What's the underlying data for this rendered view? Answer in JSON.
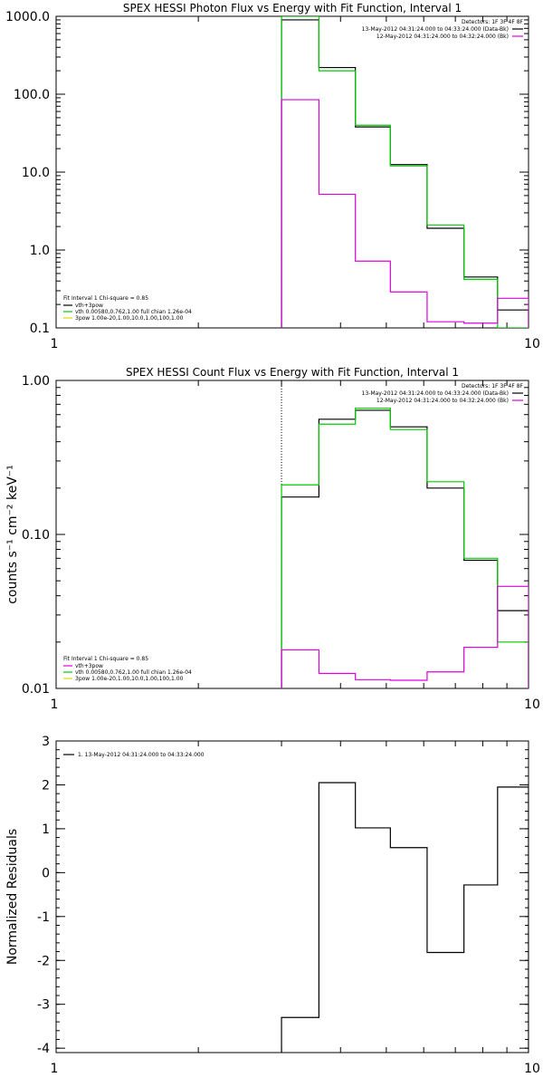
{
  "colors": {
    "data": "#000000",
    "background": "#000000",
    "model": "#00cc00",
    "component_green": "#00cc00",
    "component_magenta": "#dd00dd",
    "axis": "#000000",
    "vline": "#000000"
  },
  "chart_data": [
    {
      "id": "photon",
      "type": "line",
      "step": true,
      "title": "SPEX HESSI Photon Flux vs Energy with Fit Function, Interval 1",
      "xlabel": "",
      "ylabel": "",
      "xscale": "log",
      "yscale": "log",
      "xlim": [
        1,
        10
      ],
      "ylim": [
        0.1,
        1000
      ],
      "x_ticks": [
        {
          "v": 1,
          "l": "1"
        },
        {
          "v": 10,
          "l": "10"
        }
      ],
      "y_ticks": [
        {
          "v": 0.1,
          "l": "0.1"
        },
        {
          "v": 1,
          "l": "1.0"
        },
        {
          "v": 10,
          "l": "10.0"
        },
        {
          "v": 100,
          "l": "100.0"
        },
        {
          "v": 1000,
          "l": "1000.0"
        }
      ],
      "vline_x": 3.0,
      "legend_top": {
        "placement": "top-right",
        "header": "Detectors: 1F 3F 4F 8F",
        "rows": [
          {
            "text": "13-May-2012 04:31:24.000 to 04:33:24.000 (Data-Bk)",
            "color": "#000000"
          },
          {
            "text": "12-May-2012 04:31:24.000 to 04:32:24.000 (Bk)",
            "color": "#dd00dd"
          }
        ]
      },
      "legend_bottom": {
        "placement": "bottom-left",
        "header": "Fit Interval 1    Chi-square = 0.85",
        "rows": [
          {
            "text": "vth+3pow",
            "color": "#000000"
          },
          {
            "text": "vth 0.00580,0.762,1.00   full chian 1.26e-04",
            "color": "#00cc00"
          },
          {
            "text": "3pow 1.00e-20,1.00,10.0,1.00,100,1.00",
            "color": "#dddd00"
          }
        ]
      },
      "x_edges": [
        3.0,
        3.6,
        4.3,
        5.1,
        6.1,
        7.3,
        8.6,
        10.0
      ],
      "series": [
        {
          "name": "13-May-2012 04:31:24.000 to 04:33:24.000 (Data-Bk)",
          "color": "#000000",
          "values": [
            900,
            220,
            38,
            12.5,
            1.9,
            0.45,
            0.17
          ]
        },
        {
          "name": "vth+3pow",
          "color": "#00cc00",
          "values": [
            1000,
            200,
            40,
            12.0,
            2.1,
            0.42,
            0.1
          ]
        },
        {
          "name": "12-May-2012 04:31:24.000 to 04:32:24.000 (Bk)",
          "color": "#dd00dd",
          "values": [
            85,
            5.2,
            0.72,
            0.29,
            0.12,
            0.115,
            0.24
          ]
        }
      ]
    },
    {
      "id": "count",
      "type": "line",
      "step": true,
      "title": "SPEX HESSI Count Flux vs Energy with Fit Function, Interval 1",
      "xlabel": "",
      "ylabel": "counts s⁻¹ cm⁻² keV⁻¹",
      "xscale": "log",
      "yscale": "log",
      "xlim": [
        1,
        10
      ],
      "ylim": [
        0.01,
        1.0
      ],
      "x_ticks": [
        {
          "v": 1,
          "l": "1"
        },
        {
          "v": 10,
          "l": "10"
        }
      ],
      "y_ticks": [
        {
          "v": 0.01,
          "l": "0.01"
        },
        {
          "v": 0.1,
          "l": "0.10"
        },
        {
          "v": 1,
          "l": "1.00"
        }
      ],
      "vline_x": 3.0,
      "legend_top": {
        "placement": "top-right",
        "header": "Detectors: 1F 3F 4F 8F",
        "rows": [
          {
            "text": "13-May-2012 04:31:24.000 to 04:33:24.000 (Data-Bk)",
            "color": "#000000"
          },
          {
            "text": "12-May-2012 04:31:24.000 to 04:32:24.000 (Bk)",
            "color": "#dd00dd"
          }
        ]
      },
      "legend_bottom": {
        "placement": "bottom-left",
        "header": "Fit Interval 1    Chi-square = 0.85",
        "rows": [
          {
            "text": "vth+3pow",
            "color": "#dd00dd"
          },
          {
            "text": "vth 0.00580,0.762,1.00   full chian 1.26e-04",
            "color": "#00cc00"
          },
          {
            "text": "3pow 1.00e-20,1.00,10.0,1.00,100,1.00",
            "color": "#dddd00"
          }
        ]
      },
      "x_edges": [
        3.0,
        3.6,
        4.3,
        5.1,
        6.1,
        7.3,
        8.6,
        10.0
      ],
      "series": [
        {
          "name": "13-May-2012 04:31:24.000 to 04:33:24.000 (Data-Bk)",
          "color": "#000000",
          "values": [
            0.175,
            0.56,
            0.64,
            0.5,
            0.2,
            0.068,
            0.032
          ]
        },
        {
          "name": "vth+3pow",
          "color": "#00cc00",
          "values": [
            0.21,
            0.52,
            0.66,
            0.48,
            0.22,
            0.07,
            0.02
          ]
        },
        {
          "name": "12-May-2012 04:31:24.000 to 04:32:24.000 (Bk)",
          "color": "#dd00dd",
          "values": [
            0.0178,
            0.0125,
            0.0114,
            0.0113,
            0.0128,
            0.0185,
            0.046
          ]
        }
      ]
    },
    {
      "id": "residuals",
      "type": "line",
      "step": true,
      "title": "",
      "xlabel": "",
      "ylabel": "Normalized Residuals",
      "xscale": "log",
      "yscale": "linear",
      "xlim": [
        1,
        10
      ],
      "ylim": [
        -4.1,
        3.0
      ],
      "x_ticks": [
        {
          "v": 1,
          "l": "1"
        },
        {
          "v": 10,
          "l": "10"
        }
      ],
      "y_ticks": [
        {
          "v": -4,
          "l": "-4"
        },
        {
          "v": -3,
          "l": "-3"
        },
        {
          "v": -2,
          "l": "-2"
        },
        {
          "v": -1,
          "l": "-1"
        },
        {
          "v": 0,
          "l": "0"
        },
        {
          "v": 1,
          "l": "1"
        },
        {
          "v": 2,
          "l": "2"
        },
        {
          "v": 3,
          "l": "3"
        }
      ],
      "legend_top": {
        "placement": "top-left",
        "header": "",
        "rows": [
          {
            "text": "1. 13-May-2012 04:31:24.000 to 04:33:24.000",
            "color": "#000000"
          }
        ]
      },
      "x_edges": [
        3.0,
        3.6,
        4.3,
        5.1,
        6.1,
        7.3,
        8.6,
        10.0
      ],
      "series": [
        {
          "name": "1. 13-May-2012 04:31:24.000 to 04:33:24.000",
          "color": "#000000",
          "values": [
            -3.3,
            2.05,
            1.02,
            0.57,
            -1.82,
            -0.28,
            1.95
          ]
        }
      ]
    }
  ]
}
